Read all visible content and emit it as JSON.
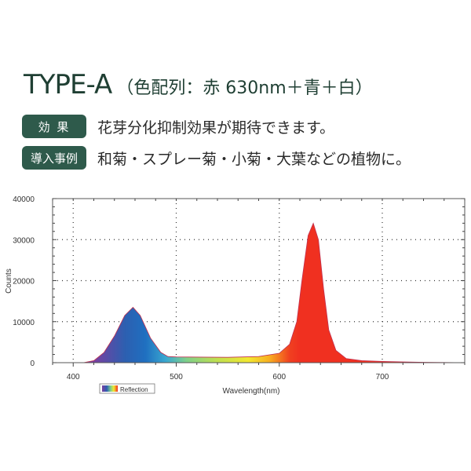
{
  "header": {
    "title": "TYPE-A",
    "subtitle": "（色配列：赤 630nm＋青＋白）"
  },
  "rows": [
    {
      "badge": "効 果",
      "text": "花芽分化抑制効果が期待できます。"
    },
    {
      "badge": "導入事例",
      "text": "和菊・スプレー菊・小菊・大葉などの植物に。"
    }
  ],
  "chart_data": {
    "type": "area",
    "xlabel": "Wavelength(nm)",
    "ylabel": "Counts",
    "xlim": [
      380,
      780
    ],
    "ylim": [
      0,
      40000
    ],
    "xticks": [
      "400",
      "500",
      "600",
      "700"
    ],
    "yticks": [
      "0",
      "10000",
      "20000",
      "30000",
      "40000"
    ],
    "grid": true,
    "legend": {
      "label": "Reflection",
      "position": "bottom-left"
    },
    "series": [
      {
        "x": [
          380,
          410,
          420,
          430,
          440,
          450,
          458,
          465,
          475,
          485,
          492,
          500,
          550,
          580,
          600,
          610,
          617,
          622,
          628,
          633,
          638,
          643,
          648,
          655,
          665,
          680,
          700,
          740,
          780
        ],
        "y": [
          0,
          0,
          500,
          2500,
          6500,
          11500,
          13500,
          11500,
          6000,
          2500,
          1500,
          1400,
          1300,
          1500,
          2300,
          4500,
          10000,
          20000,
          31000,
          34000,
          30000,
          18000,
          8000,
          3000,
          1000,
          500,
          300,
          100,
          0
        ]
      }
    ],
    "colors": {
      "spectrum": [
        "#7a3fa0",
        "#2d5fb0",
        "#1f6fc0",
        "#3aa8d0",
        "#7fd08a",
        "#c0e050",
        "#f2e830",
        "#f8b020",
        "#f04020",
        "#f03020"
      ]
    }
  }
}
